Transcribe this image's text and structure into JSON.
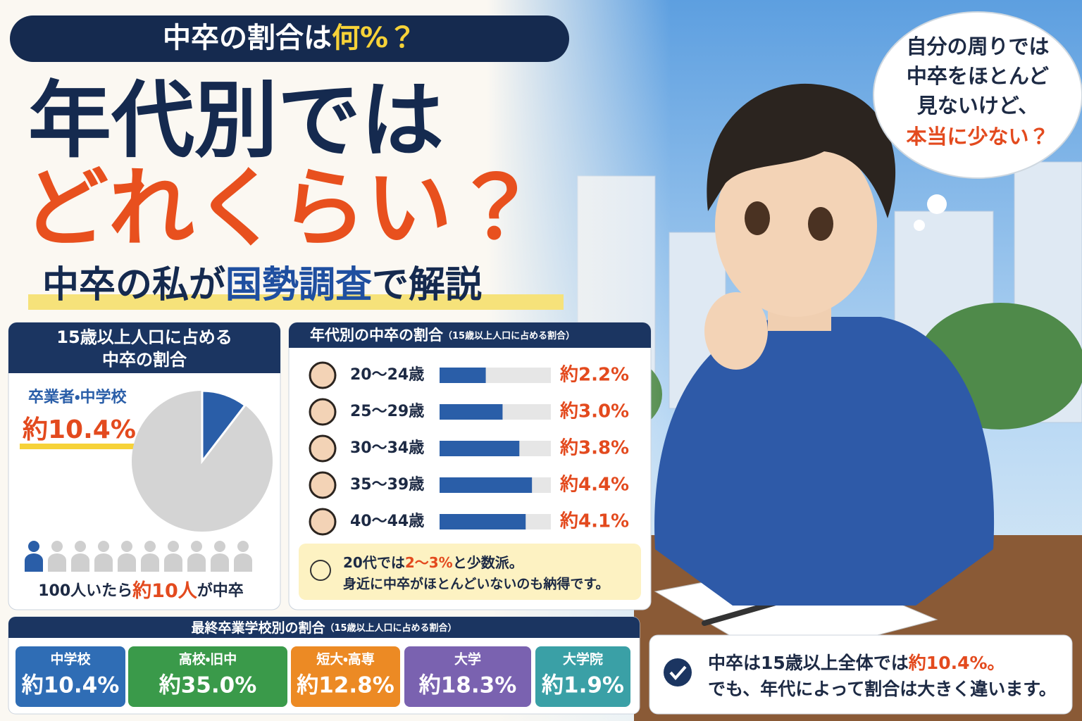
{
  "header": {
    "badge": [
      "中卒の割合は",
      "何%？"
    ],
    "title": [
      "年代別では",
      "どれくらい？"
    ],
    "subtitle": [
      "中卒の私が",
      "国勢調査",
      "で解説"
    ]
  },
  "bubble": {
    "lines": [
      "自分の周りでは",
      "中卒をほとんど",
      "見ないけど、",
      "本当に少ない？"
    ]
  },
  "chart_data": [
    {
      "type": "pie",
      "title": [
        "15歳以上人口に占める",
        "中卒の割合"
      ],
      "label": "卒業者・中学校",
      "values": [
        10.4
      ],
      "value_labels": [
        "約10.4%"
      ],
      "colors": [
        "#2a5ea8",
        "#d4d4d4"
      ]
    },
    {
      "type": "bar",
      "title": "年代別の中卒の割合",
      "note": "（15歳以上人口に占める割合）",
      "categories": [
        "20〜24歳",
        "25〜29歳",
        "30〜34歳",
        "35〜39歳",
        "40〜44歳"
      ],
      "values": [
        2.2,
        3.0,
        3.8,
        4.4,
        4.1
      ],
      "value_labels": [
        "約2.2%",
        "約3.0%",
        "約3.8%",
        "約4.4%",
        "約4.1%"
      ],
      "color": "#2a5ea8",
      "xlim": [
        0,
        5.3
      ]
    },
    {
      "type": "cards",
      "title": "最終卒業学校別の割合",
      "note": "（15歳以上人口に占める割合）",
      "categories": [
        "中学校",
        "高校・旧中",
        "短大・高専",
        "大学",
        "大学院"
      ],
      "values": [
        10.4,
        35.0,
        12.8,
        18.3,
        1.9
      ],
      "value_labels": [
        "約10.4%",
        "約35.0%",
        "約12.8%",
        "約18.3%",
        "約1.9%"
      ],
      "colors": [
        "#2f6db5",
        "#3a9a4a",
        "#ec8a24",
        "#7a62b0",
        "#3aa0a6"
      ]
    }
  ],
  "people_caption": [
    "100人いたら",
    "約10人",
    "が中卒"
  ],
  "tip": [
    "20代では",
    "2〜3%",
    "と少数派。",
    "身近に中卒がほとんどいないのも納得です。"
  ],
  "conclusion": [
    "中卒は15歳以上全体では",
    "約10.4%。",
    "でも、年代によって割合は大きく違います。"
  ]
}
